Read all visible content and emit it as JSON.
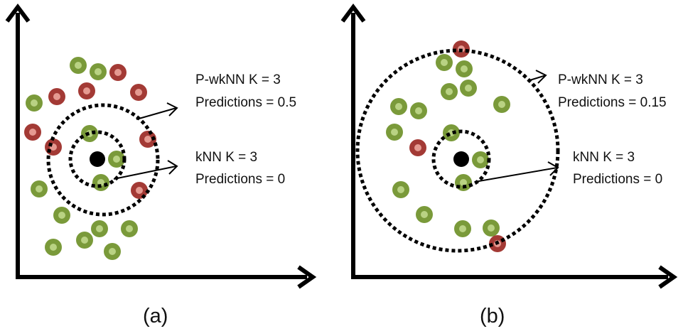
{
  "colors": {
    "green_outer": "#7a9a3a",
    "green_inner": "#b9d283",
    "red_outer": "#a33a35",
    "red_inner": "#e59a91",
    "query": "#000000",
    "line": "#000000"
  },
  "panel_a": {
    "caption": "(a)",
    "pwknn_line1": "P-wkNN K = 3",
    "pwknn_line2": "Predictions = 0.5",
    "knn_line1": "kNN K = 3",
    "knn_line2": "Predictions = 0"
  },
  "panel_b": {
    "caption": "(b)",
    "pwknn_line1": "P-wkNN K = 3",
    "pwknn_line2": "Predictions = 0.15",
    "knn_line1": "kNN K = 3",
    "knn_line2": "Predictions = 0"
  }
}
